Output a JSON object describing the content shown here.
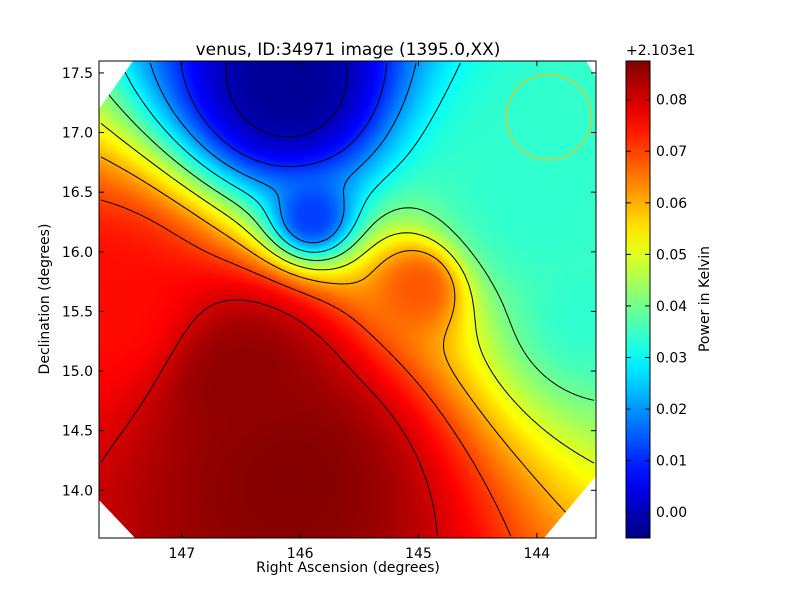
{
  "chart_data": {
    "type": "heatmap",
    "title": "venus, ID:34971 image (1395.0,XX)",
    "xlabel": "Right Ascension (degrees)",
    "ylabel": "Declination (degrees)",
    "xlim": [
      147.7,
      143.5
    ],
    "ylim": [
      13.6,
      17.6
    ],
    "x_ticks": [
      {
        "value": 147,
        "label": "147"
      },
      {
        "value": 146,
        "label": "146"
      },
      {
        "value": 145,
        "label": "145"
      },
      {
        "value": 144,
        "label": "144"
      }
    ],
    "y_ticks": [
      {
        "value": 14.0,
        "label": "14.0"
      },
      {
        "value": 14.5,
        "label": "14.5"
      },
      {
        "value": 15.0,
        "label": "15.0"
      },
      {
        "value": 15.5,
        "label": "15.5"
      },
      {
        "value": 16.0,
        "label": "16.0"
      },
      {
        "value": 16.5,
        "label": "16.5"
      },
      {
        "value": 17.0,
        "label": "17.0"
      },
      {
        "value": 17.5,
        "label": "17.5"
      }
    ],
    "colorbar": {
      "label": "Power in Kelvin",
      "offset_label": "+2.103e1",
      "colormap": "jet",
      "range": [
        -0.005,
        0.0875
      ],
      "ticks": [
        {
          "value": 0.0,
          "label": "0.00"
        },
        {
          "value": 0.01,
          "label": "0.01"
        },
        {
          "value": 0.02,
          "label": "0.02"
        },
        {
          "value": 0.03,
          "label": "0.03"
        },
        {
          "value": 0.04,
          "label": "0.04"
        },
        {
          "value": 0.05,
          "label": "0.05"
        },
        {
          "value": 0.06,
          "label": "0.06"
        },
        {
          "value": 0.07,
          "label": "0.07"
        },
        {
          "value": 0.08,
          "label": "0.08"
        }
      ]
    },
    "field_peaks": [
      {
        "ra": 146.1,
        "dec": 17.4,
        "value": -0.003,
        "sigma": 0.45
      },
      {
        "ra": 145.9,
        "dec": 16.3,
        "value": 0.012,
        "sigma": 0.2
      },
      {
        "ra": 146.1,
        "dec": 14.1,
        "value": 0.087,
        "sigma": 0.55
      },
      {
        "ra": 146.5,
        "dec": 14.9,
        "value": 0.086,
        "sigma": 0.5
      },
      {
        "ra": 147.6,
        "dec": 15.5,
        "value": 0.075,
        "sigma": 0.5
      },
      {
        "ra": 145.0,
        "dec": 15.7,
        "value": 0.068,
        "sigma": 0.25
      },
      {
        "ra": 144.0,
        "dec": 16.5,
        "value": 0.034,
        "sigma": 0.6
      },
      {
        "ra": 143.6,
        "dec": 15.5,
        "value": 0.034,
        "sigma": 0.3
      }
    ],
    "contour_levels": [
      0.0,
      0.01,
      0.02,
      0.03,
      0.04,
      0.05,
      0.06,
      0.07,
      0.08
    ],
    "beam_circle": {
      "ra": 143.9,
      "dec": 17.13,
      "radius_deg": 0.36,
      "color": "#cccc33"
    },
    "masked_corners": true
  }
}
